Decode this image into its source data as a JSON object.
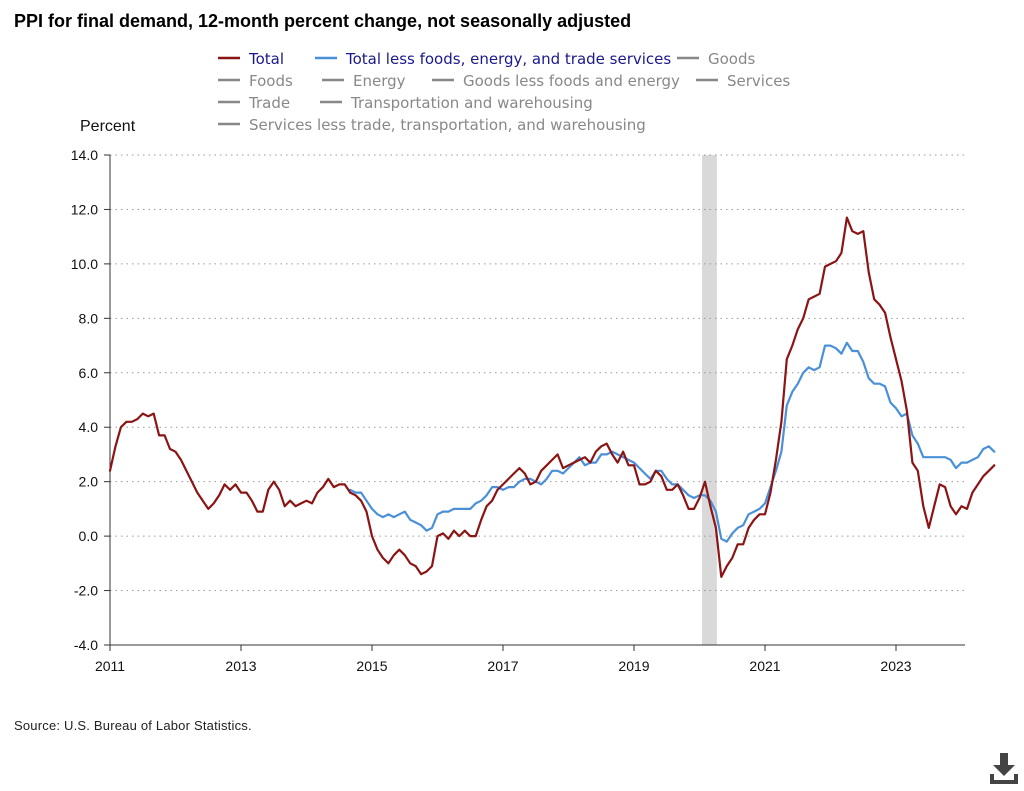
{
  "title": "PPI for final demand, 12-month percent change, not seasonally adjusted",
  "source": "Source: U.S. Bureau of Labor Statistics.",
  "download_icon": "download-icon",
  "colors": {
    "total": "#8b1414",
    "core": "#4a90d9",
    "inactive": "#888888",
    "active_text": "#1a1a8c",
    "recession": "#d9d9d9"
  },
  "chart_data": {
    "type": "line",
    "title": "PPI for final demand, 12-month percent change, not seasonally adjusted",
    "ylabel": "Percent",
    "xlabel": "",
    "ylim": [
      -4.0,
      14.0
    ],
    "y_ticks": [
      "14.0",
      "12.0",
      "10.0",
      "8.0",
      "6.0",
      "4.0",
      "2.0",
      "0.0",
      "-2.0",
      "-4.0"
    ],
    "y_tick_values": [
      14,
      12,
      10,
      8,
      6,
      4,
      2,
      0,
      -2,
      -4
    ],
    "x_ticks": [
      "2011",
      "2013",
      "2015",
      "2017",
      "2019",
      "2021",
      "2023"
    ],
    "x_range": [
      "2011-01",
      "2024-06"
    ],
    "grid": "horizontal dotted",
    "recession": {
      "start": "2020-02",
      "end": "2020-04"
    },
    "legend": [
      {
        "name": "Total",
        "active": true,
        "series": "total"
      },
      {
        "name": "Total less foods, energy, and trade services",
        "active": true,
        "series": "core"
      },
      {
        "name": "Goods",
        "active": false
      },
      {
        "name": "Foods",
        "active": false
      },
      {
        "name": "Energy",
        "active": false
      },
      {
        "name": "Goods less foods and energy",
        "active": false
      },
      {
        "name": "Services",
        "active": false
      },
      {
        "name": "Trade",
        "active": false
      },
      {
        "name": "Transportation and warehousing",
        "active": false
      },
      {
        "name": "Services less trade, transportation, and warehousing",
        "active": false
      }
    ],
    "series": [
      {
        "id": "total",
        "name": "Total",
        "start": "2011-01",
        "values": [
          2.4,
          3.3,
          4.0,
          4.2,
          4.2,
          4.3,
          4.5,
          4.4,
          4.5,
          3.7,
          3.7,
          3.2,
          3.1,
          2.8,
          2.4,
          2.0,
          1.6,
          1.3,
          1.0,
          1.2,
          1.5,
          1.9,
          1.7,
          1.9,
          1.6,
          1.6,
          1.3,
          0.9,
          0.9,
          1.7,
          2.0,
          1.7,
          1.1,
          1.3,
          1.1,
          1.2,
          1.3,
          1.2,
          1.6,
          1.8,
          2.1,
          1.8,
          1.9,
          1.9,
          1.6,
          1.5,
          1.3,
          0.9,
          0.0,
          -0.5,
          -0.8,
          -1.0,
          -0.7,
          -0.5,
          -0.7,
          -1.0,
          -1.1,
          -1.4,
          -1.3,
          -1.1,
          0.0,
          0.1,
          -0.1,
          0.2,
          0.0,
          0.2,
          0.0,
          0.0,
          0.6,
          1.1,
          1.3,
          1.7,
          1.9,
          2.1,
          2.3,
          2.5,
          2.3,
          1.9,
          2.0,
          2.4,
          2.6,
          2.8,
          3.0,
          2.5,
          2.6,
          2.7,
          2.8,
          2.9,
          2.7,
          3.1,
          3.3,
          3.4,
          3.0,
          2.7,
          3.1,
          2.6,
          2.6,
          1.9,
          1.9,
          2.0,
          2.4,
          2.2,
          1.7,
          1.7,
          1.9,
          1.5,
          1.0,
          1.0,
          1.4,
          2.0,
          1.1,
          0.3,
          -1.5,
          -1.1,
          -0.8,
          -0.3,
          -0.3,
          0.3,
          0.6,
          0.8,
          0.8,
          1.6,
          2.8,
          4.2,
          6.5,
          7.0,
          7.6,
          8.0,
          8.7,
          8.8,
          8.9,
          9.9,
          10.0,
          10.1,
          10.4,
          11.7,
          11.2,
          11.1,
          11.2,
          9.7,
          8.7,
          8.5,
          8.2,
          7.3,
          6.5,
          5.7,
          4.6,
          2.7,
          2.4,
          1.1,
          0.3,
          1.1,
          1.9,
          1.8,
          1.1,
          0.8,
          1.1,
          1.0,
          1.6,
          1.9,
          2.2,
          2.4,
          2.6
        ]
      },
      {
        "id": "core",
        "name": "Total less foods, energy, and trade services",
        "start": "2014-09",
        "values": [
          1.7,
          1.6,
          1.6,
          1.3,
          1.0,
          0.8,
          0.7,
          0.8,
          0.7,
          0.8,
          0.9,
          0.6,
          0.5,
          0.4,
          0.2,
          0.3,
          0.8,
          0.9,
          0.9,
          1.0,
          1.0,
          1.0,
          1.0,
          1.2,
          1.3,
          1.5,
          1.8,
          1.8,
          1.7,
          1.8,
          1.8,
          2.0,
          2.1,
          2.1,
          2.0,
          1.9,
          2.1,
          2.4,
          2.4,
          2.3,
          2.5,
          2.7,
          2.9,
          2.6,
          2.7,
          2.7,
          3.0,
          3.0,
          3.1,
          3.0,
          2.9,
          2.8,
          2.7,
          2.5,
          2.3,
          2.1,
          2.4,
          2.4,
          2.1,
          1.9,
          1.9,
          1.7,
          1.5,
          1.4,
          1.5,
          1.5,
          1.3,
          0.9,
          -0.1,
          -0.2,
          0.1,
          0.3,
          0.4,
          0.8,
          0.9,
          1.0,
          1.2,
          1.8,
          2.4,
          3.1,
          4.8,
          5.3,
          5.6,
          6.0,
          6.2,
          6.1,
          6.2,
          7.0,
          7.0,
          6.9,
          6.7,
          7.1,
          6.8,
          6.8,
          6.4,
          5.8,
          5.6,
          5.6,
          5.5,
          4.9,
          4.7,
          4.4,
          4.5,
          3.7,
          3.4,
          2.9,
          2.9,
          2.9,
          2.9,
          2.9,
          2.8,
          2.5,
          2.7,
          2.7,
          2.8,
          2.9,
          3.2,
          3.3,
          3.1
        ]
      }
    ]
  }
}
